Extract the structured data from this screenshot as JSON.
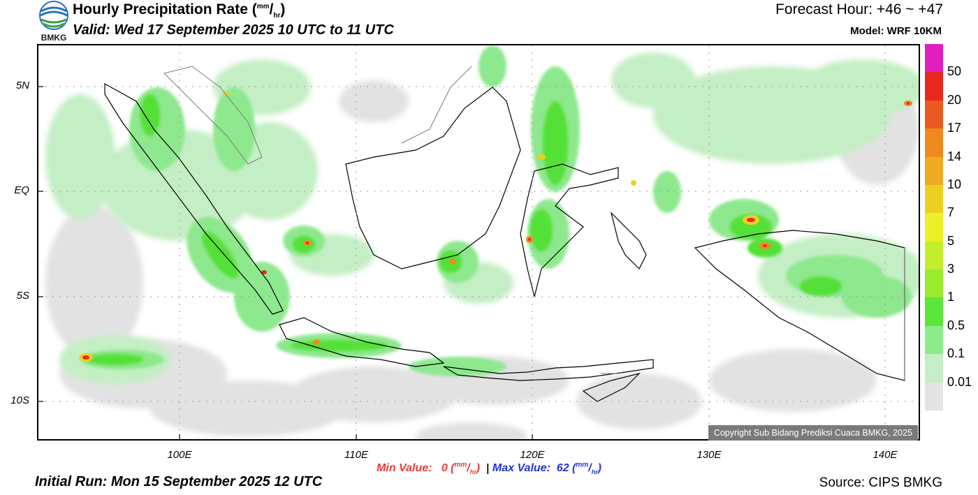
{
  "header": {
    "title_main": "Hourly Precipitation Rate (",
    "title_unit_top": "mm",
    "title_slash": "/",
    "title_unit_bottom": "hr",
    "title_close": ")",
    "valid": "Valid: Wed 17 September 2025 10 UTC to 11 UTC",
    "forecast_hour": "Forecast Hour: +46 ~ +47",
    "model": "Model: WRF 10KM",
    "logo_text": "BMKG"
  },
  "axes": {
    "latitude_labels": [
      "5N",
      "EQ",
      "5S",
      "10S"
    ],
    "longitude_labels": [
      "100E",
      "110E",
      "120E",
      "130E",
      "140E"
    ]
  },
  "colorbar": {
    "labels": [
      "50",
      "20",
      "17",
      "14",
      "10",
      "7",
      "5",
      "3",
      "1",
      "0.5",
      "0.1",
      "0.01"
    ],
    "colors": [
      "#e020c0",
      "#e8281e",
      "#ea5a22",
      "#ee8a20",
      "#eeaa20",
      "#ecd020",
      "#ecf028",
      "#c2ee2c",
      "#98ec2c",
      "#5ce63a",
      "#8cec8c",
      "#c6eec6",
      "#e4e4e4"
    ]
  },
  "footer": {
    "min_label": "Min Value:",
    "min_value": "0",
    "max_label": "Max Value:",
    "max_value": "62",
    "unit_top": "mm",
    "unit_bottom": "hr",
    "separator": "|",
    "initial_run": "Initial Run: Mon 15 September 2025 12 UTC",
    "source": "Source: CIPS BMKG",
    "copyright": "Copyright Sub Bidang Prediksi Cuaca BMKG, 2025"
  }
}
